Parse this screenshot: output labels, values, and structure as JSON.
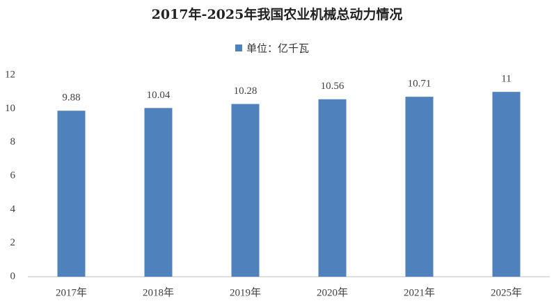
{
  "chart_data": {
    "type": "bar",
    "title": "2017年-2025年我国农业机械总动力情况",
    "categories": [
      "2017年",
      "2018年",
      "2019年",
      "2020年",
      "2021年",
      "2025年"
    ],
    "series": [
      {
        "name": "单位：亿千瓦",
        "color": "#4f81bd",
        "values": [
          9.88,
          10.04,
          10.28,
          10.56,
          10.71,
          11
        ]
      }
    ],
    "ylim": [
      0,
      12
    ],
    "yticks": [
      0,
      2,
      4,
      6,
      8,
      10,
      12
    ],
    "grid": false,
    "legend": "top"
  }
}
